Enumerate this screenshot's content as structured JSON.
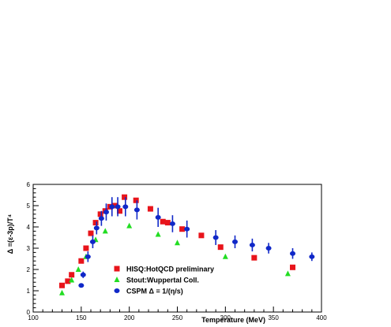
{
  "chart_data": {
    "type": "scatter",
    "xlabel": "Temperature (MeV)",
    "ylabel": "Δ =(ε-3p)/T⁴",
    "xlim": [
      100,
      400
    ],
    "ylim": [
      0,
      6
    ],
    "x_ticks": [
      100,
      150,
      200,
      250,
      300,
      350,
      400
    ],
    "y_ticks": [
      0,
      1,
      2,
      3,
      4,
      5,
      6
    ],
    "grid": false,
    "legend_position": "bottom-center",
    "series": [
      {
        "name": "HISQ:HotQCD preliminary",
        "marker": "square",
        "color": "#e8141b",
        "points": [
          {
            "x": 130,
            "y": 1.25
          },
          {
            "x": 136,
            "y": 1.45
          },
          {
            "x": 140,
            "y": 1.75
          },
          {
            "x": 150,
            "y": 2.4
          },
          {
            "x": 155,
            "y": 3.0
          },
          {
            "x": 160,
            "y": 3.7
          },
          {
            "x": 165,
            "y": 4.2
          },
          {
            "x": 170,
            "y": 4.6
          },
          {
            "x": 175,
            "y": 4.75
          },
          {
            "x": 180,
            "y": 4.95
          },
          {
            "x": 185,
            "y": 5.0
          },
          {
            "x": 190,
            "y": 4.75
          },
          {
            "x": 195,
            "y": 5.4
          },
          {
            "x": 207,
            "y": 5.25
          },
          {
            "x": 222,
            "y": 4.85
          },
          {
            "x": 235,
            "y": 4.25
          },
          {
            "x": 240,
            "y": 4.2
          },
          {
            "x": 255,
            "y": 3.9
          },
          {
            "x": 275,
            "y": 3.6
          },
          {
            "x": 295,
            "y": 3.05
          },
          {
            "x": 330,
            "y": 2.55
          },
          {
            "x": 370,
            "y": 2.1
          }
        ]
      },
      {
        "name": "Stout:Wuppertal Coll.",
        "marker": "triangle",
        "color": "#22dd22",
        "points": [
          {
            "x": 130,
            "y": 0.9
          },
          {
            "x": 140,
            "y": 1.5
          },
          {
            "x": 147,
            "y": 2.0
          },
          {
            "x": 155,
            "y": 2.6
          },
          {
            "x": 165,
            "y": 3.4
          },
          {
            "x": 175,
            "y": 3.8
          },
          {
            "x": 200,
            "y": 4.05
          },
          {
            "x": 230,
            "y": 3.65
          },
          {
            "x": 250,
            "y": 3.25
          },
          {
            "x": 300,
            "y": 2.6
          },
          {
            "x": 365,
            "y": 1.8
          }
        ]
      },
      {
        "name": "CSPM Δ = 1/(η/s)",
        "marker": "circle",
        "color": "#1028c8",
        "points": [
          {
            "x": 150,
            "y": 1.25,
            "err": 0.1
          },
          {
            "x": 152,
            "y": 1.75,
            "err": 0.15
          },
          {
            "x": 157,
            "y": 2.6,
            "err": 0.25
          },
          {
            "x": 162,
            "y": 3.3,
            "err": 0.3
          },
          {
            "x": 166,
            "y": 3.95,
            "err": 0.3
          },
          {
            "x": 171,
            "y": 4.4,
            "err": 0.35
          },
          {
            "x": 176,
            "y": 4.7,
            "err": 0.4
          },
          {
            "x": 182,
            "y": 4.95,
            "err": 0.45
          },
          {
            "x": 188,
            "y": 4.95,
            "err": 0.45
          },
          {
            "x": 196,
            "y": 4.95,
            "err": 0.45
          },
          {
            "x": 208,
            "y": 4.8,
            "err": 0.45
          },
          {
            "x": 230,
            "y": 4.45,
            "err": 0.45
          },
          {
            "x": 245,
            "y": 4.15,
            "err": 0.4
          },
          {
            "x": 260,
            "y": 3.9,
            "err": 0.4
          },
          {
            "x": 290,
            "y": 3.5,
            "err": 0.35
          },
          {
            "x": 310,
            "y": 3.3,
            "err": 0.3
          },
          {
            "x": 328,
            "y": 3.15,
            "err": 0.3
          },
          {
            "x": 345,
            "y": 3.0,
            "err": 0.25
          },
          {
            "x": 370,
            "y": 2.75,
            "err": 0.25
          },
          {
            "x": 390,
            "y": 2.6,
            "err": 0.2
          }
        ]
      }
    ]
  }
}
